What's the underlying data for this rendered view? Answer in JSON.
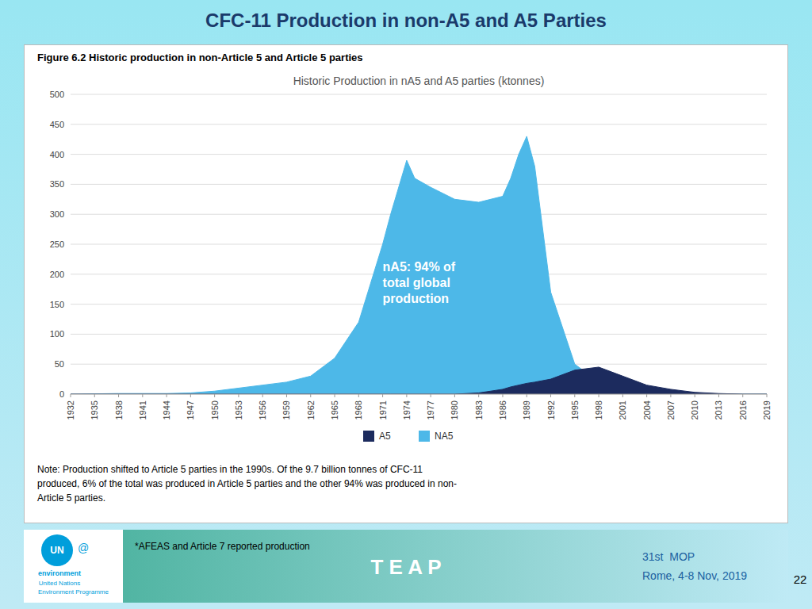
{
  "page": {
    "title": "CFC-11 Production in non-A5 and A5 Parties",
    "figure_label": "Figure 6.2   Historic production in non-Article 5 and Article 5 parties",
    "note": "Note: Production shifted to Article 5 parties in the 1990s. Of the 9.7 billion tonnes of CFC-11\nproduced, 6% of the total was produced in Article 5 parties and the other 94% was produced in non-\nArticle 5 parties.",
    "footer_left": "*AFEAS and Article 7 reported production",
    "footer_center": "T E A P",
    "footer_right": [
      "31st  MOP",
      "Rome, 4-8 Nov, 2019"
    ],
    "page_number": "22",
    "logo": [
      "UN",
      "@",
      "environment",
      "United Nations",
      "Environment Programme"
    ]
  },
  "chart_data": {
    "type": "area",
    "title": "Historic Production in nA5 and A5 parties (ktonnes)",
    "x": [
      1932,
      1933,
      1935,
      1938,
      1941,
      1944,
      1947,
      1950,
      1953,
      1956,
      1959,
      1962,
      1965,
      1968,
      1971,
      1972,
      1974,
      1975,
      1977,
      1980,
      1983,
      1986,
      1987,
      1988,
      1989,
      1990,
      1992,
      1995,
      1998,
      2001,
      2004,
      2007,
      2010,
      2013,
      2016,
      2019
    ],
    "xlim": [
      1932,
      2019
    ],
    "xticks": [
      1932,
      1935,
      1938,
      1941,
      1944,
      1947,
      1950,
      1953,
      1956,
      1959,
      1962,
      1965,
      1968,
      1971,
      1974,
      1977,
      1980,
      1983,
      1986,
      1989,
      1992,
      1995,
      1998,
      2001,
      2004,
      2007,
      2010,
      2013,
      2016,
      2019
    ],
    "ylim": [
      0,
      500
    ],
    "yticks": [
      0,
      50,
      100,
      150,
      200,
      250,
      300,
      350,
      400,
      450,
      500
    ],
    "grid": true,
    "legend": "bottom",
    "series": [
      {
        "name": "NA5",
        "color": "#4db8e8",
        "values": [
          0,
          0,
          0.5,
          1,
          1,
          1,
          2,
          5,
          10,
          15,
          20,
          30,
          60,
          120,
          250,
          300,
          390,
          360,
          345,
          325,
          320,
          330,
          360,
          400,
          430,
          380,
          170,
          50,
          20,
          10,
          5,
          2,
          1,
          0.5,
          0,
          0
        ]
      },
      {
        "name": "A5",
        "color": "#1c2b5e",
        "values": [
          0,
          0,
          0,
          0,
          0,
          0,
          0,
          0,
          0,
          0,
          0,
          0,
          0,
          0,
          0,
          0,
          0,
          0,
          0,
          0,
          2,
          8,
          12,
          15,
          18,
          20,
          25,
          40,
          45,
          30,
          15,
          8,
          3,
          1,
          0,
          0
        ]
      }
    ],
    "annotations": [
      {
        "text": "nA5: 94% of\ntotal global\nproduction",
        "x": 1971,
        "y": 185,
        "color": "#ffffff"
      }
    ]
  }
}
